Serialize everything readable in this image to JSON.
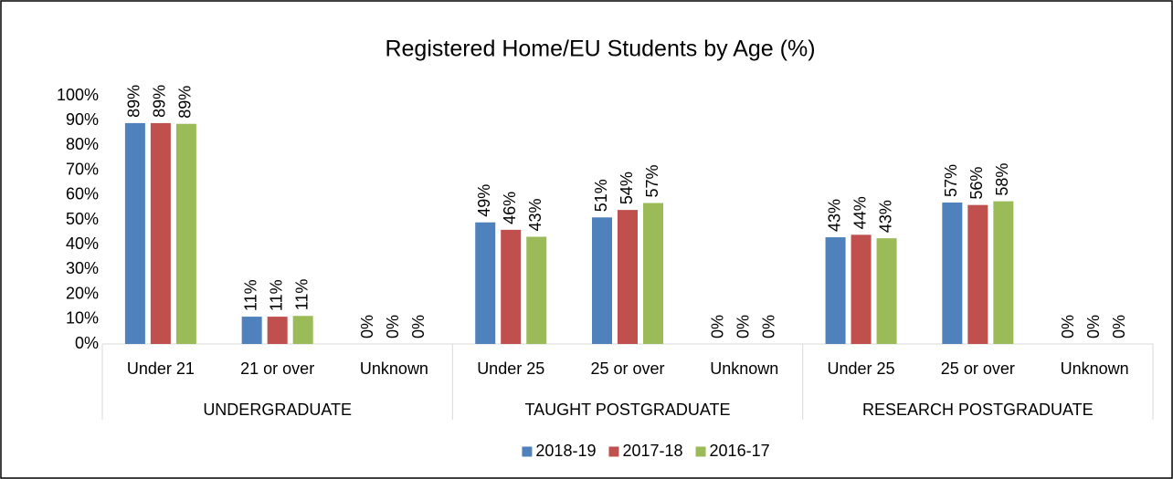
{
  "chart_data": {
    "type": "bar",
    "title": "Registered Home/EU Students by Age (%)",
    "groups": [
      {
        "label": "UNDERGRADUATE",
        "categories": [
          "Under 21",
          "21 or over",
          "Unknown"
        ]
      },
      {
        "label": "TAUGHT POSTGRADUATE",
        "categories": [
          "Under 25",
          "25 or over",
          "Unknown"
        ]
      },
      {
        "label": "RESEARCH POSTGRADUATE",
        "categories": [
          "Under 25",
          "25 or over",
          "Unknown"
        ]
      }
    ],
    "series": [
      {
        "name": "2018-19",
        "color": "#4f81bd",
        "values": [
          89,
          11,
          0,
          49,
          51,
          0,
          43,
          57,
          0
        ],
        "value_labels": [
          "89%",
          "11%",
          "0%",
          "49%",
          "51%",
          "0%",
          "43%",
          "57%",
          "0%"
        ]
      },
      {
        "name": "2017-18",
        "color": "#c0504d",
        "values": [
          89,
          11,
          0,
          46,
          54,
          0,
          44,
          56,
          0
        ],
        "value_labels": [
          "89%",
          "11%",
          "0%",
          "46%",
          "54%",
          "0%",
          "44%",
          "56%",
          "0%"
        ]
      },
      {
        "name": "2016-17",
        "color": "#9bbb59",
        "values": [
          88.7,
          11.3,
          0,
          43.2,
          56.8,
          0,
          42.6,
          57.5,
          0
        ],
        "value_labels": [
          "89%",
          "11%",
          "0%",
          "43%",
          "57%",
          "0%",
          "43%",
          "58%",
          "0%"
        ]
      }
    ],
    "ylim": [
      0,
      100
    ],
    "yticks": [
      {
        "value": 0,
        "label": "0%"
      },
      {
        "value": 10,
        "label": "10%"
      },
      {
        "value": 20,
        "label": "20%"
      },
      {
        "value": 30,
        "label": "30%"
      },
      {
        "value": 40,
        "label": "40%"
      },
      {
        "value": 50,
        "label": "50%"
      },
      {
        "value": 60,
        "label": "60%"
      },
      {
        "value": 70,
        "label": "70%"
      },
      {
        "value": 80,
        "label": "80%"
      },
      {
        "value": 90,
        "label": "90%"
      },
      {
        "value": 100,
        "label": "100%"
      }
    ],
    "legend": "bottom"
  }
}
